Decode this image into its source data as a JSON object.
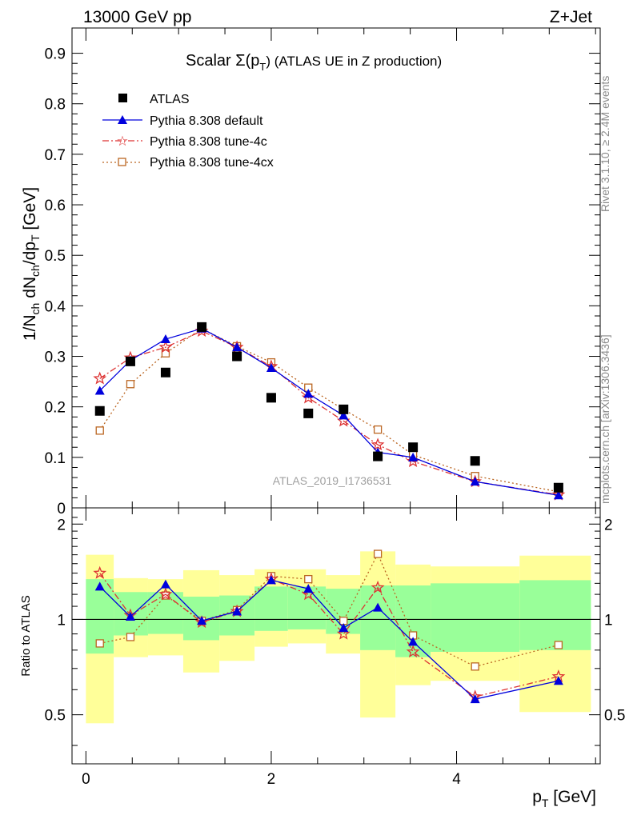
{
  "header": {
    "left": "13000 GeV pp",
    "right": "Z+Jet"
  },
  "side_labels": {
    "rivet": "Rivet 3.1.10, ≥ 2.4M events",
    "mcplots": "mcplots.cern.ch [arXiv:1306.3436]"
  },
  "chart_data": [
    {
      "type": "scatter",
      "title_main": "Scalar Σ(p",
      "title_sub": "T",
      "title_tail": ") (ATLAS UE in Z production)",
      "ylabel": "1/N_ch dN_ch/dp_T [GeV]",
      "watermark": "ATLAS_2019_I1736531",
      "xlim": [
        -0.15,
        5.55
      ],
      "ylim": [
        0,
        0.95
      ],
      "yticks": [
        0,
        0.1,
        0.2,
        0.3,
        0.4,
        0.5,
        0.6,
        0.7,
        0.8,
        0.9
      ],
      "ytick_labels": [
        "0",
        "0.1",
        "0.2",
        "0.3",
        "0.4",
        "0.5",
        "0.6",
        "0.7",
        "0.8",
        "0.9"
      ],
      "x": [
        0.15,
        0.48,
        0.86,
        1.25,
        1.63,
        2.0,
        2.4,
        2.78,
        3.15,
        3.53,
        4.2,
        5.1
      ],
      "series": [
        {
          "name": "ATLAS",
          "color": "#000000",
          "marker": "square",
          "style": "none",
          "values": [
            0.192,
            0.29,
            0.268,
            0.358,
            0.3,
            0.218,
            0.187,
            0.195,
            0.102,
            0.12,
            0.093,
            0.04
          ]
        },
        {
          "name": "Pythia 8.308 default",
          "color": "#0000dd",
          "marker": "triangle",
          "style": "solid",
          "values": [
            0.232,
            0.292,
            0.334,
            0.355,
            0.318,
            0.277,
            0.226,
            0.183,
            0.11,
            0.1,
            0.052,
            0.025
          ]
        },
        {
          "name": "Pythia 8.308 tune-4c",
          "color": "#dd3333",
          "marker": "star",
          "style": "dashdot",
          "values": [
            0.256,
            0.297,
            0.318,
            0.35,
            0.318,
            0.28,
            0.218,
            0.172,
            0.125,
            0.092,
            0.052,
            0.026
          ]
        },
        {
          "name": "Pythia 8.308 tune-4cx",
          "color": "#bb6622",
          "marker": "opensquare",
          "style": "dotted",
          "values": [
            0.153,
            0.245,
            0.306,
            0.355,
            0.32,
            0.288,
            0.238,
            0.195,
            0.155,
            0.105,
            0.063,
            0.032
          ]
        }
      ]
    },
    {
      "type": "scatter",
      "ylabel": "Ratio to ATLAS",
      "xlabel_main": "p",
      "xlabel_sub": "T",
      "xlabel_tail": " [GeV]",
      "xlim": [
        -0.15,
        5.55
      ],
      "ylim": [
        0.35,
        2.25
      ],
      "yticks": [
        0.5,
        1,
        2
      ],
      "ytick_labels": [
        "0.5",
        "1",
        "2"
      ],
      "xticks": [
        0,
        2,
        4
      ],
      "xtick_labels": [
        "0",
        "2",
        "4"
      ],
      "bins": [
        [
          0.0,
          0.3
        ],
        [
          0.3,
          0.67
        ],
        [
          0.67,
          1.05
        ],
        [
          1.05,
          1.44
        ],
        [
          1.44,
          1.82
        ],
        [
          1.82,
          2.18
        ],
        [
          2.18,
          2.59
        ],
        [
          2.59,
          2.96
        ],
        [
          2.96,
          3.34
        ],
        [
          3.34,
          3.72
        ],
        [
          3.72,
          4.68
        ],
        [
          4.68,
          5.45
        ]
      ],
      "band_inner": [
        [
          0.78,
          1.34
        ],
        [
          0.89,
          1.22
        ],
        [
          0.9,
          1.22
        ],
        [
          0.86,
          1.18
        ],
        [
          0.89,
          1.19
        ],
        [
          0.92,
          1.27
        ],
        [
          0.93,
          1.27
        ],
        [
          0.9,
          1.25
        ],
        [
          0.8,
          1.28
        ],
        [
          0.76,
          1.28
        ],
        [
          0.79,
          1.3
        ],
        [
          0.8,
          1.33
        ]
      ],
      "band_outer": [
        [
          0.47,
          1.6
        ],
        [
          0.76,
          1.35
        ],
        [
          0.77,
          1.34
        ],
        [
          0.68,
          1.43
        ],
        [
          0.74,
          1.38
        ],
        [
          0.82,
          1.44
        ],
        [
          0.84,
          1.44
        ],
        [
          0.78,
          1.38
        ],
        [
          0.49,
          1.64
        ],
        [
          0.62,
          1.49
        ],
        [
          0.64,
          1.47
        ],
        [
          0.51,
          1.59
        ]
      ],
      "series": [
        {
          "name": "Pythia 8.308 default",
          "values": [
            1.27,
            1.02,
            1.29,
            0.99,
            1.06,
            1.33,
            1.25,
            0.94,
            1.09,
            0.85,
            0.56,
            0.64
          ]
        },
        {
          "name": "Pythia 8.308 tune-4c",
          "values": [
            1.4,
            1.03,
            1.2,
            0.98,
            1.06,
            1.34,
            1.2,
            0.9,
            1.26,
            0.79,
            0.57,
            0.66
          ]
        },
        {
          "name": "Pythia 8.308 tune-4cx",
          "values": [
            0.84,
            0.88,
            1.19,
            0.99,
            1.07,
            1.37,
            1.34,
            0.99,
            1.61,
            0.89,
            0.71,
            0.83
          ]
        }
      ]
    }
  ]
}
